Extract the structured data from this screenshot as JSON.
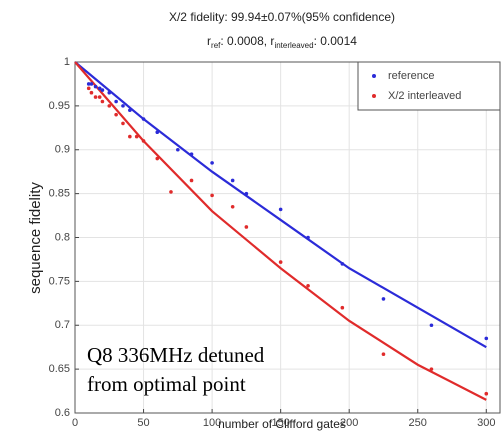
{
  "chart_data": {
    "type": "scatter",
    "title": "X/2 fidelity: 99.94±0.07%(95% confidence)",
    "subtitle_parts": [
      "r",
      "ref",
      ": 0.0008, r",
      "interleaved",
      ": 0.0014"
    ],
    "xlabel": "number of Clifford gates",
    "ylabel": "sequence fidelity",
    "annotations": [
      "Q8 336MHz detuned",
      "from optimal point"
    ],
    "xlim": [
      0,
      310
    ],
    "ylim": [
      0.6,
      1
    ],
    "xticks": [
      0,
      50,
      100,
      150,
      200,
      250,
      300
    ],
    "yticks": [
      0.6,
      0.65,
      0.7,
      0.75,
      0.8,
      0.85,
      0.9,
      0.95,
      1
    ],
    "grid": true,
    "legend": "upper right",
    "series": [
      {
        "name": "reference",
        "color": "#2b2bd8",
        "x": [
          10,
          12,
          15,
          18,
          20,
          25,
          30,
          35,
          40,
          50,
          60,
          75,
          85,
          100,
          115,
          125,
          150,
          170,
          195,
          225,
          260,
          300
        ],
        "values": [
          0.975,
          0.975,
          0.972,
          0.97,
          0.968,
          0.965,
          0.955,
          0.95,
          0.945,
          0.935,
          0.92,
          0.9,
          0.895,
          0.885,
          0.865,
          0.85,
          0.832,
          0.8,
          0.77,
          0.73,
          0.7,
          0.685
        ]
      },
      {
        "name": "X/2 interleaved",
        "color": "#e02b2b",
        "x": [
          10,
          12,
          15,
          18,
          20,
          25,
          30,
          35,
          40,
          45,
          50,
          60,
          70,
          85,
          100,
          115,
          125,
          150,
          170,
          195,
          225,
          260,
          300
        ],
        "values": [
          0.97,
          0.965,
          0.96,
          0.96,
          0.955,
          0.95,
          0.94,
          0.93,
          0.915,
          0.915,
          0.91,
          0.89,
          0.852,
          0.865,
          0.848,
          0.835,
          0.812,
          0.772,
          0.745,
          0.72,
          0.667,
          0.65,
          0.622
        ]
      }
    ],
    "fits": [
      {
        "color": "#2b2bd8",
        "x": [
          0,
          50,
          100,
          150,
          200,
          250,
          300
        ],
        "values": [
          1,
          0.935,
          0.875,
          0.82,
          0.765,
          0.72,
          0.675
        ]
      },
      {
        "color": "#e02b2b",
        "x": [
          0,
          50,
          100,
          150,
          200,
          250,
          300
        ],
        "values": [
          1,
          0.91,
          0.83,
          0.765,
          0.705,
          0.655,
          0.615
        ]
      }
    ]
  }
}
